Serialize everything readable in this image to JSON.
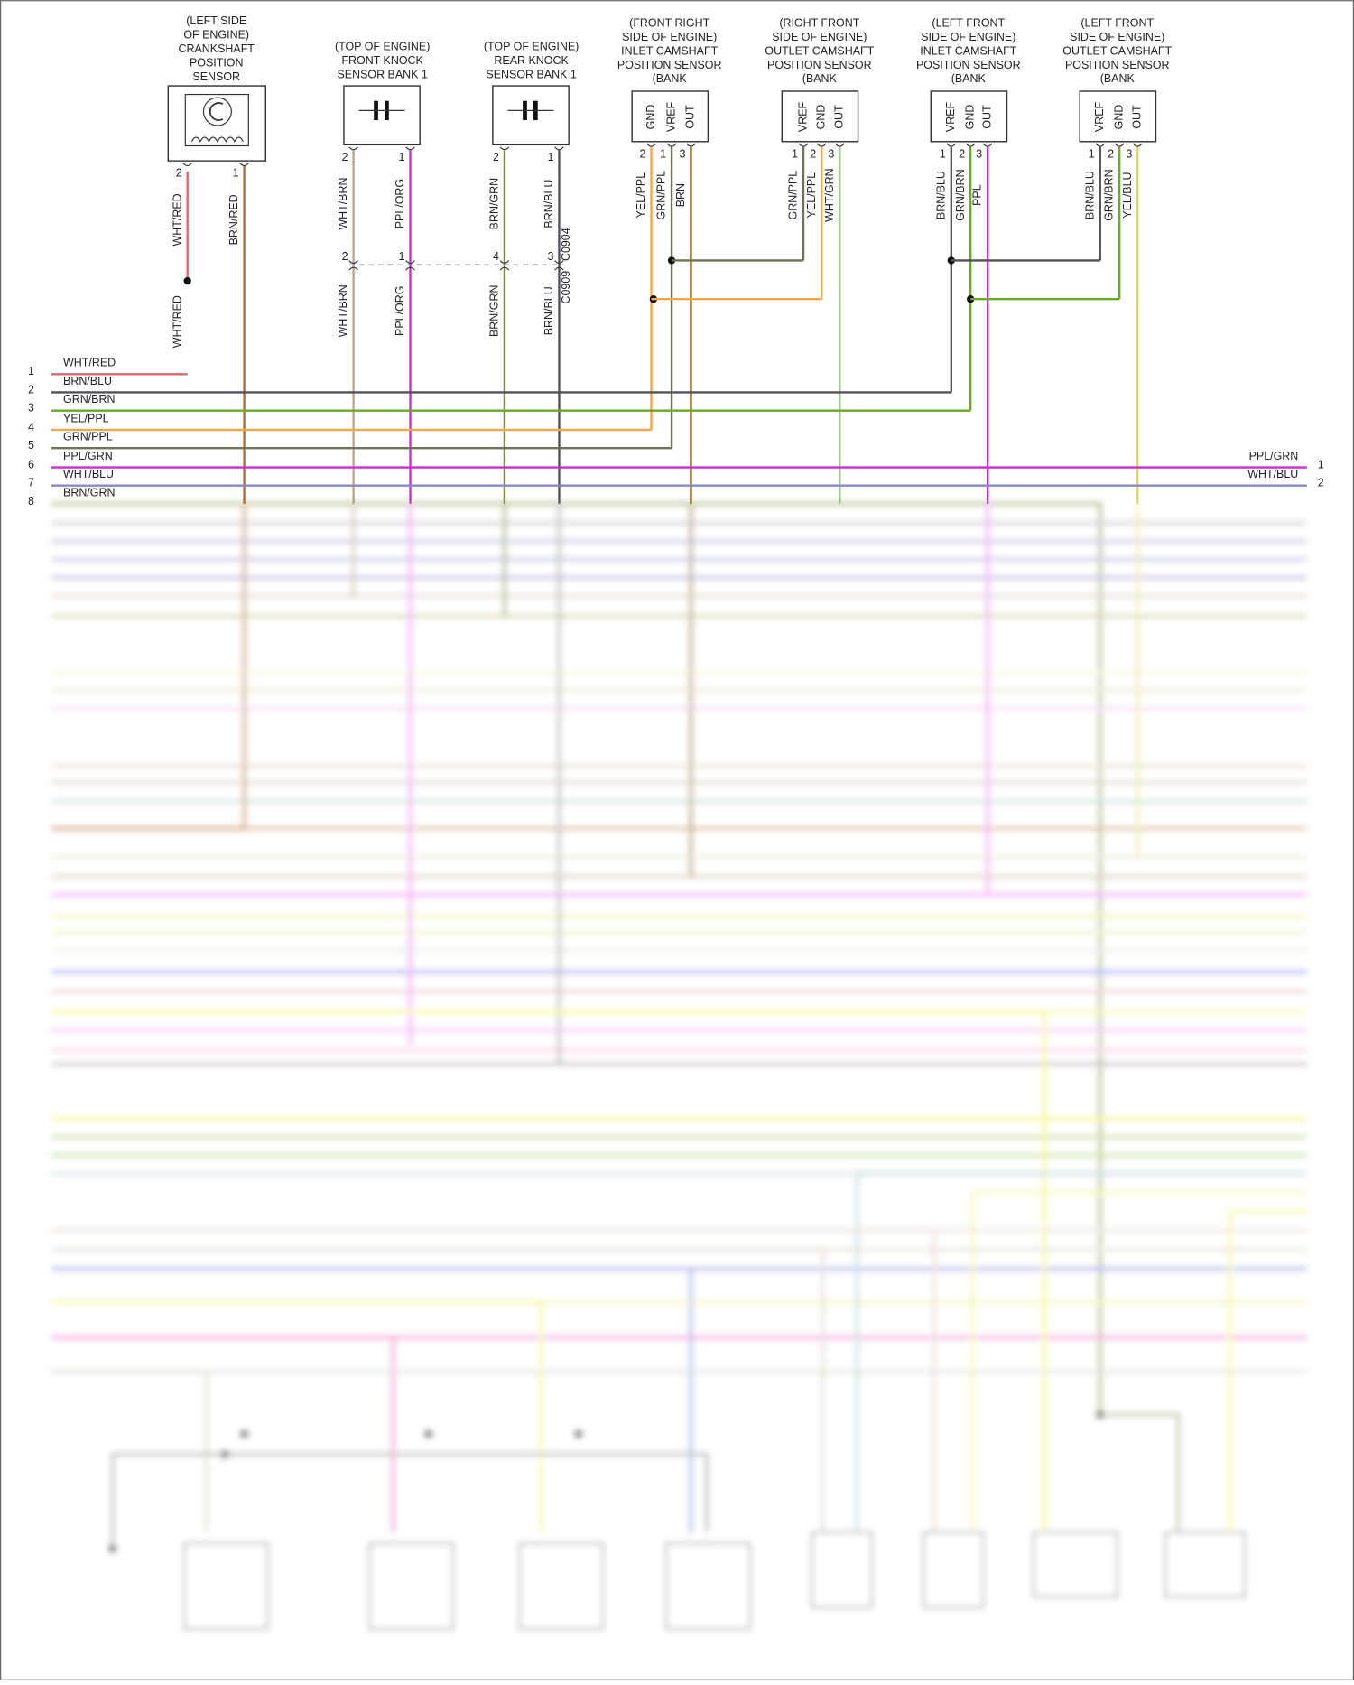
{
  "sensors": [
    {
      "label": [
        "(LEFT SIDE",
        "OF ENGINE)",
        "CRANKSHAFT",
        "POSITION",
        "SENSOR"
      ],
      "pins": [
        "2",
        "1"
      ],
      "wires": [
        "WHT/RED",
        "BRN/RED"
      ]
    },
    {
      "label": [
        "(TOP OF ENGINE)",
        "FRONT KNOCK",
        "SENSOR BANK 1"
      ],
      "pins": [
        "2",
        "1"
      ],
      "wires": [
        "WHT/BRN",
        "PPL/ORG"
      ]
    },
    {
      "label": [
        "(TOP OF ENGINE)",
        "REAR KNOCK",
        "SENSOR BANK 1"
      ],
      "pins": [
        "2",
        "1"
      ],
      "wires": [
        "BRN/GRN",
        "BRN/BLU"
      ]
    },
    {
      "label": [
        "(FRONT RIGHT",
        "SIDE OF ENGINE)",
        "INLET CAMSHAFT",
        "POSITION SENSOR",
        "(BANK"
      ],
      "pin_names": [
        "GND",
        "VREF",
        "OUT"
      ],
      "pins": [
        "2",
        "1",
        "3"
      ],
      "wires": [
        "YEL/PPL",
        "GRN/PPL",
        "BRN"
      ]
    },
    {
      "label": [
        "(RIGHT FRONT",
        "SIDE OF ENGINE)",
        "OUTLET CAMSHAFT",
        "POSITION SENSOR",
        "(BANK"
      ],
      "pin_names": [
        "VREF",
        "GND",
        "OUT"
      ],
      "pins": [
        "1",
        "2",
        "3"
      ],
      "wires": [
        "GRN/PPL",
        "YEL/PPL",
        "WHT/GRN"
      ]
    },
    {
      "label": [
        "(LEFT FRONT",
        "SIDE OF ENGINE)",
        "INLET CAMSHAFT",
        "POSITION SENSOR",
        "(BANK"
      ],
      "pin_names": [
        "VREF",
        "GND",
        "OUT"
      ],
      "pins": [
        "1",
        "2",
        "3"
      ],
      "wires": [
        "BRN/BLU",
        "GRN/BRN",
        "PPL"
      ]
    },
    {
      "label": [
        "(LEFT FRONT",
        "SIDE OF ENGINE)",
        "OUTLET CAMSHAFT",
        "POSITION SENSOR",
        "(BANK"
      ],
      "pin_names": [
        "VREF",
        "GND",
        "OUT"
      ],
      "pins": [
        "1",
        "2",
        "3"
      ],
      "wires": [
        "BRN/BLU",
        "GRN/BRN",
        "YEL/BLU"
      ]
    }
  ],
  "crank_lower_wire": "WHT/RED",
  "knock_connector": {
    "pins": [
      "2",
      "1",
      "4",
      "3"
    ],
    "wires": [
      "WHT/BRN",
      "PPL/ORG",
      "BRN/GRN",
      "BRN/BLU"
    ],
    "names": [
      "C0904",
      "C0909"
    ]
  },
  "left_connector": [
    {
      "pin": "1",
      "wire": "WHT/RED"
    },
    {
      "pin": "2",
      "wire": "BRN/BLU"
    },
    {
      "pin": "3",
      "wire": "GRN/BRN"
    },
    {
      "pin": "4",
      "wire": "YEL/PPL"
    },
    {
      "pin": "5",
      "wire": "GRN/PPL"
    },
    {
      "pin": "6",
      "wire": "PPL/GRN"
    },
    {
      "pin": "7",
      "wire": "WHT/BLU"
    },
    {
      "pin": "8",
      "wire": "BRN/GRN"
    }
  ],
  "right_connector": [
    {
      "pin": "1",
      "wire": "PPL/GRN"
    },
    {
      "pin": "2",
      "wire": "WHT/BLU"
    }
  ]
}
